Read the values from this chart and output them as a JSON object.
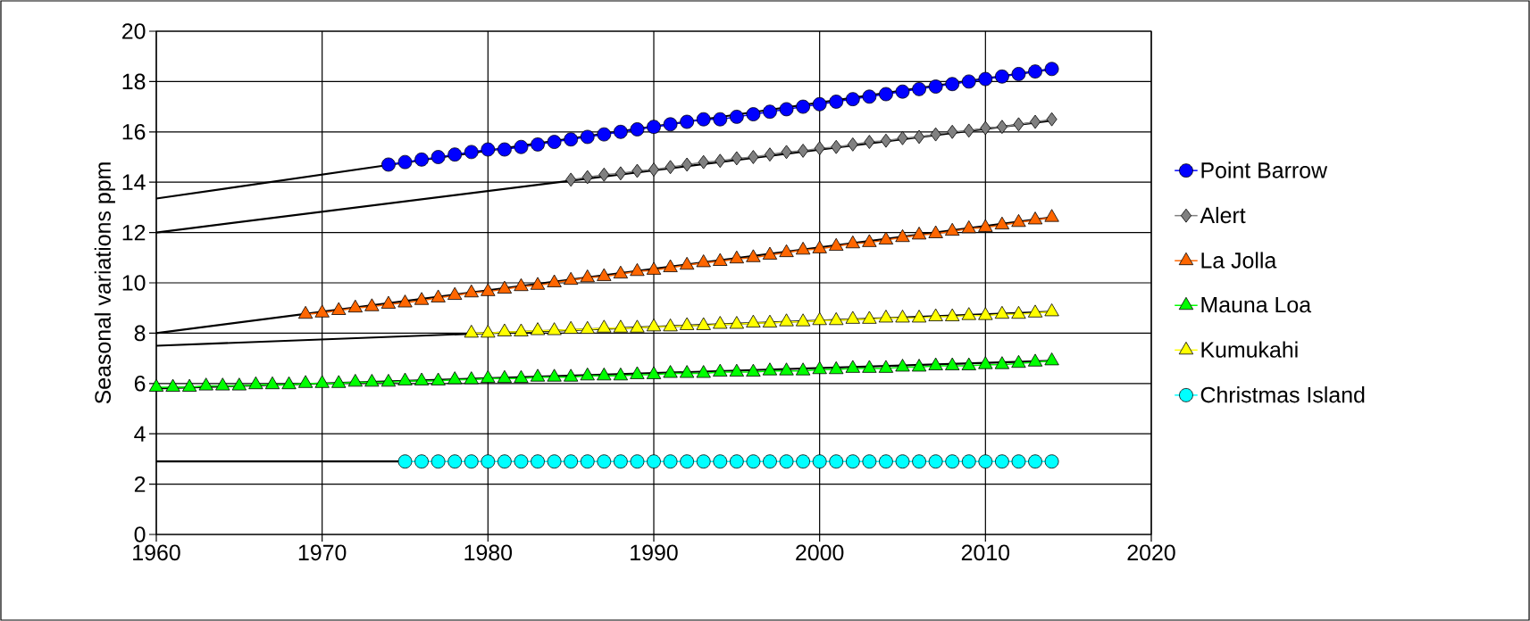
{
  "chart_data": {
    "type": "line",
    "ylabel": "Seasonal variations ppm",
    "xlim": [
      1960,
      2020
    ],
    "xticks": [
      1960,
      1970,
      1980,
      1990,
      2000,
      2010,
      2020
    ],
    "ylim": [
      0,
      20
    ],
    "yticks": [
      0,
      2,
      4,
      6,
      8,
      10,
      12,
      14,
      16,
      18,
      20
    ],
    "grid": true,
    "legend": "right",
    "series": [
      {
        "type": "line",
        "color": "#000000",
        "x": [
          1960,
          2014
        ],
        "values": [
          13.35,
          18.5
        ]
      },
      {
        "type": "line",
        "color": "#000000",
        "x": [
          1960,
          2014
        ],
        "values": [
          12.0,
          16.45
        ]
      },
      {
        "type": "line",
        "color": "#000000",
        "x": [
          1960,
          2014
        ],
        "values": [
          8.0,
          12.6
        ]
      },
      {
        "type": "line",
        "color": "#000000",
        "x": [
          1960,
          2014
        ],
        "values": [
          5.8,
          6.9
        ]
      },
      {
        "type": "line",
        "color": "#000000",
        "x": [
          1960,
          2014
        ],
        "values": [
          7.5,
          8.85
        ]
      },
      {
        "type": "line",
        "color": "#000000",
        "x": [
          1960,
          1975
        ],
        "values": [
          2.9,
          2.9
        ]
      },
      {
        "name": "Point Barrow",
        "color": "#0000ff",
        "marker": "circle",
        "x": [
          1974,
          1975,
          1976,
          1977,
          1978,
          1979,
          1980,
          1981,
          1982,
          1983,
          1984,
          1985,
          1986,
          1987,
          1988,
          1989,
          1990,
          1991,
          1992,
          1993,
          1994,
          1995,
          1996,
          1997,
          1998,
          1999,
          2000,
          2001,
          2002,
          2003,
          2004,
          2005,
          2006,
          2007,
          2008,
          2009,
          2010,
          2011,
          2012,
          2013,
          2014
        ],
        "values": [
          14.7,
          14.8,
          14.9,
          15.0,
          15.1,
          15.2,
          15.3,
          15.3,
          15.4,
          15.5,
          15.6,
          15.7,
          15.8,
          15.9,
          16.0,
          16.1,
          16.2,
          16.3,
          16.4,
          16.5,
          16.5,
          16.6,
          16.7,
          16.8,
          16.9,
          17.0,
          17.1,
          17.2,
          17.3,
          17.4,
          17.5,
          17.6,
          17.7,
          17.8,
          17.9,
          18.0,
          18.1,
          18.2,
          18.3,
          18.4,
          18.5
        ]
      },
      {
        "name": "Alert",
        "color": "#808080",
        "marker": "diamond",
        "x": [
          1985,
          1986,
          1987,
          1988,
          1989,
          1990,
          1991,
          1992,
          1993,
          1994,
          1995,
          1996,
          1997,
          1998,
          1999,
          2000,
          2001,
          2002,
          2003,
          2004,
          2005,
          2006,
          2007,
          2008,
          2009,
          2010,
          2011,
          2012,
          2013,
          2014
        ],
        "values": [
          14.1,
          14.2,
          14.3,
          14.35,
          14.45,
          14.5,
          14.6,
          14.7,
          14.8,
          14.85,
          14.95,
          15.0,
          15.1,
          15.2,
          15.25,
          15.35,
          15.4,
          15.5,
          15.6,
          15.65,
          15.75,
          15.8,
          15.9,
          16.0,
          16.05,
          16.15,
          16.2,
          16.3,
          16.4,
          16.5
        ]
      },
      {
        "name": "La Jolla",
        "color": "#ff6600",
        "marker": "triangle",
        "x": [
          1969,
          1970,
          1971,
          1972,
          1973,
          1974,
          1975,
          1976,
          1977,
          1978,
          1979,
          1980,
          1981,
          1982,
          1983,
          1984,
          1985,
          1986,
          1987,
          1988,
          1989,
          1990,
          1991,
          1992,
          1993,
          1994,
          1995,
          1996,
          1997,
          1998,
          1999,
          2000,
          2001,
          2002,
          2003,
          2004,
          2005,
          2006,
          2007,
          2008,
          2009,
          2010,
          2011,
          2012,
          2013,
          2014
        ],
        "values": [
          8.75,
          8.8,
          8.9,
          9.0,
          9.05,
          9.15,
          9.2,
          9.3,
          9.4,
          9.5,
          9.6,
          9.65,
          9.75,
          9.85,
          9.9,
          10.0,
          10.1,
          10.2,
          10.25,
          10.35,
          10.45,
          10.5,
          10.6,
          10.7,
          10.8,
          10.85,
          10.95,
          11.0,
          11.1,
          11.2,
          11.3,
          11.35,
          11.45,
          11.55,
          11.6,
          11.7,
          11.8,
          11.9,
          11.95,
          12.05,
          12.15,
          12.2,
          12.3,
          12.4,
          12.5,
          12.6
        ]
      },
      {
        "name": "Mauna Loa",
        "color": "#00ff00",
        "marker": "triangle",
        "x": [
          1960,
          1961,
          1962,
          1963,
          1964,
          1965,
          1966,
          1967,
          1968,
          1969,
          1970,
          1971,
          1972,
          1973,
          1974,
          1975,
          1976,
          1977,
          1978,
          1979,
          1980,
          1981,
          1982,
          1983,
          1984,
          1985,
          1986,
          1987,
          1988,
          1989,
          1990,
          1991,
          1992,
          1993,
          1994,
          1995,
          1996,
          1997,
          1998,
          1999,
          2000,
          2001,
          2002,
          2003,
          2004,
          2005,
          2006,
          2007,
          2008,
          2009,
          2010,
          2011,
          2012,
          2013,
          2014
        ],
        "values": [
          5.85,
          5.85,
          5.85,
          5.9,
          5.9,
          5.9,
          5.95,
          5.95,
          5.95,
          6.0,
          6.0,
          6.0,
          6.05,
          6.05,
          6.05,
          6.1,
          6.1,
          6.1,
          6.15,
          6.15,
          6.2,
          6.2,
          6.2,
          6.25,
          6.25,
          6.25,
          6.3,
          6.3,
          6.3,
          6.35,
          6.35,
          6.4,
          6.4,
          6.4,
          6.45,
          6.45,
          6.45,
          6.5,
          6.5,
          6.5,
          6.55,
          6.55,
          6.6,
          6.6,
          6.6,
          6.65,
          6.65,
          6.7,
          6.7,
          6.7,
          6.75,
          6.75,
          6.8,
          6.85,
          6.9
        ]
      },
      {
        "name": "Kumukahi",
        "color": "#ffff00",
        "marker": "triangle",
        "x": [
          1979,
          1980,
          1981,
          1982,
          1983,
          1984,
          1985,
          1986,
          1987,
          1988,
          1989,
          1990,
          1991,
          1992,
          1993,
          1994,
          1995,
          1996,
          1997,
          1998,
          1999,
          2000,
          2001,
          2002,
          2003,
          2004,
          2005,
          2006,
          2007,
          2008,
          2009,
          2010,
          2011,
          2012,
          2013,
          2014
        ],
        "values": [
          8.0,
          8.0,
          8.05,
          8.05,
          8.1,
          8.1,
          8.15,
          8.15,
          8.2,
          8.2,
          8.2,
          8.25,
          8.25,
          8.3,
          8.3,
          8.35,
          8.35,
          8.4,
          8.4,
          8.45,
          8.45,
          8.5,
          8.5,
          8.55,
          8.55,
          8.6,
          8.6,
          8.6,
          8.65,
          8.65,
          8.7,
          8.7,
          8.75,
          8.75,
          8.8,
          8.85
        ]
      },
      {
        "name": "Christmas Island",
        "color": "#00ffff",
        "marker": "circle",
        "x": [
          1975,
          1976,
          1977,
          1978,
          1979,
          1980,
          1981,
          1982,
          1983,
          1984,
          1985,
          1986,
          1987,
          1988,
          1989,
          1990,
          1991,
          1992,
          1993,
          1994,
          1995,
          1996,
          1997,
          1998,
          1999,
          2000,
          2001,
          2002,
          2003,
          2004,
          2005,
          2006,
          2007,
          2008,
          2009,
          2010,
          2011,
          2012,
          2013,
          2014
        ],
        "values": [
          2.9,
          2.9,
          2.9,
          2.9,
          2.9,
          2.9,
          2.9,
          2.9,
          2.9,
          2.9,
          2.9,
          2.9,
          2.9,
          2.9,
          2.9,
          2.9,
          2.9,
          2.9,
          2.9,
          2.9,
          2.9,
          2.9,
          2.9,
          2.9,
          2.9,
          2.9,
          2.9,
          2.9,
          2.9,
          2.9,
          2.9,
          2.9,
          2.9,
          2.9,
          2.9,
          2.9,
          2.9,
          2.9,
          2.9,
          2.9
        ]
      }
    ]
  }
}
